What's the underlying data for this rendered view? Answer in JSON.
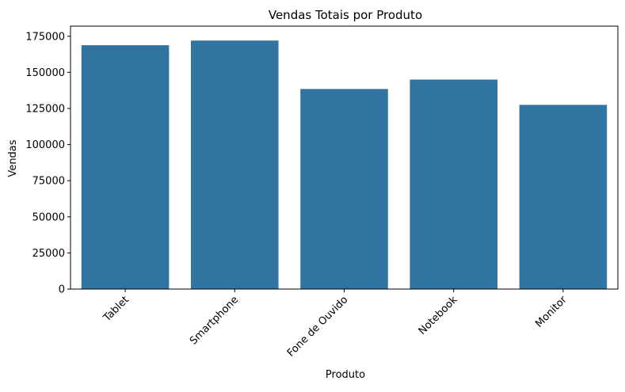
{
  "chart_data": {
    "type": "bar",
    "title": "Vendas Totais por Produto",
    "xlabel": "Produto",
    "ylabel": "Vendas",
    "categories": [
      "Tablet",
      "Smartphone",
      "Fone de Ouvido",
      "Notebook",
      "Monitor"
    ],
    "values": [
      168800,
      172000,
      138500,
      145000,
      127500
    ],
    "ylim": [
      0,
      182000
    ],
    "yticks": [
      0,
      25000,
      50000,
      75000,
      100000,
      125000,
      150000,
      175000
    ],
    "ytick_labels": [
      "0",
      "25000",
      "50000",
      "75000",
      "100000",
      "125000",
      "150000",
      "175000"
    ],
    "grid": false,
    "bar_color": "#3274a1"
  }
}
